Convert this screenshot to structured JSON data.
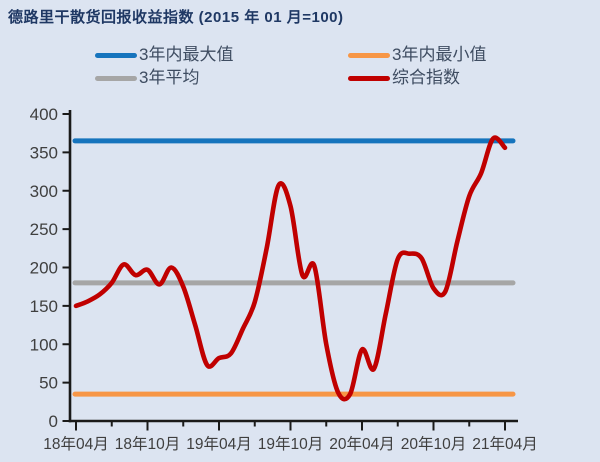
{
  "title": "德路里干散货回报收益指数 (2015 年 01 月=100)",
  "colors": {
    "background": "#dce4f1",
    "title_text": "#1f3864",
    "axis": "#1a1a1a",
    "tick_text": "#3f3f3f",
    "legend_text": "#3e4c61",
    "max_line": "#1674bd",
    "min_line": "#f79646",
    "avg_line": "#a6a6a6",
    "index_line": "#c00000"
  },
  "legend": [
    {
      "label": "3年内最大值",
      "color": "#1674bd"
    },
    {
      "label": "3年内最小值",
      "color": "#f79646"
    },
    {
      "label": "3年平均",
      "color": "#a6a6a6"
    },
    {
      "label": "综合指数",
      "color": "#c00000"
    }
  ],
  "chart_data": {
    "type": "line",
    "title": "德路里干散货回报收益指数 (2015 年 01 月=100)",
    "xlabel": "",
    "ylabel": "",
    "ylim": [
      0,
      400
    ],
    "yticks": [
      0,
      50,
      100,
      150,
      200,
      250,
      300,
      350,
      400
    ],
    "xtick_labels": [
      "18年04月",
      "18年10月",
      "19年04月",
      "19年10月",
      "20年04月",
      "20年10月",
      "21年04月"
    ],
    "grid": false,
    "legend_position": "top",
    "x": [
      "2018-04",
      "2018-05",
      "2018-06",
      "2018-07",
      "2018-08",
      "2018-09",
      "2018-10",
      "2018-11",
      "2018-12",
      "2019-01",
      "2019-02",
      "2019-03",
      "2019-04",
      "2019-05",
      "2019-06",
      "2019-07",
      "2019-08",
      "2019-09",
      "2019-10",
      "2019-11",
      "2019-12",
      "2020-01",
      "2020-02",
      "2020-03",
      "2020-04",
      "2020-05",
      "2020-06",
      "2020-07",
      "2020-08",
      "2020-09",
      "2020-10",
      "2020-11",
      "2020-12",
      "2021-01",
      "2021-02",
      "2021-03",
      "2021-04"
    ],
    "series": [
      {
        "name": "3年内最大值",
        "type": "constant",
        "value": 365,
        "color": "#1674bd"
      },
      {
        "name": "3年内最小值",
        "type": "constant",
        "value": 35,
        "color": "#f79646"
      },
      {
        "name": "3年平均",
        "type": "constant",
        "value": 180,
        "color": "#a6a6a6"
      },
      {
        "name": "综合指数",
        "type": "line",
        "color": "#c00000",
        "values": [
          150,
          156,
          165,
          180,
          204,
          190,
          197,
          178,
          200,
          175,
          125,
          73,
          82,
          88,
          120,
          155,
          225,
          307,
          280,
          190,
          202,
          100,
          37,
          35,
          93,
          68,
          140,
          211,
          218,
          212,
          173,
          169,
          234,
          293,
          323,
          368,
          356
        ]
      }
    ]
  }
}
